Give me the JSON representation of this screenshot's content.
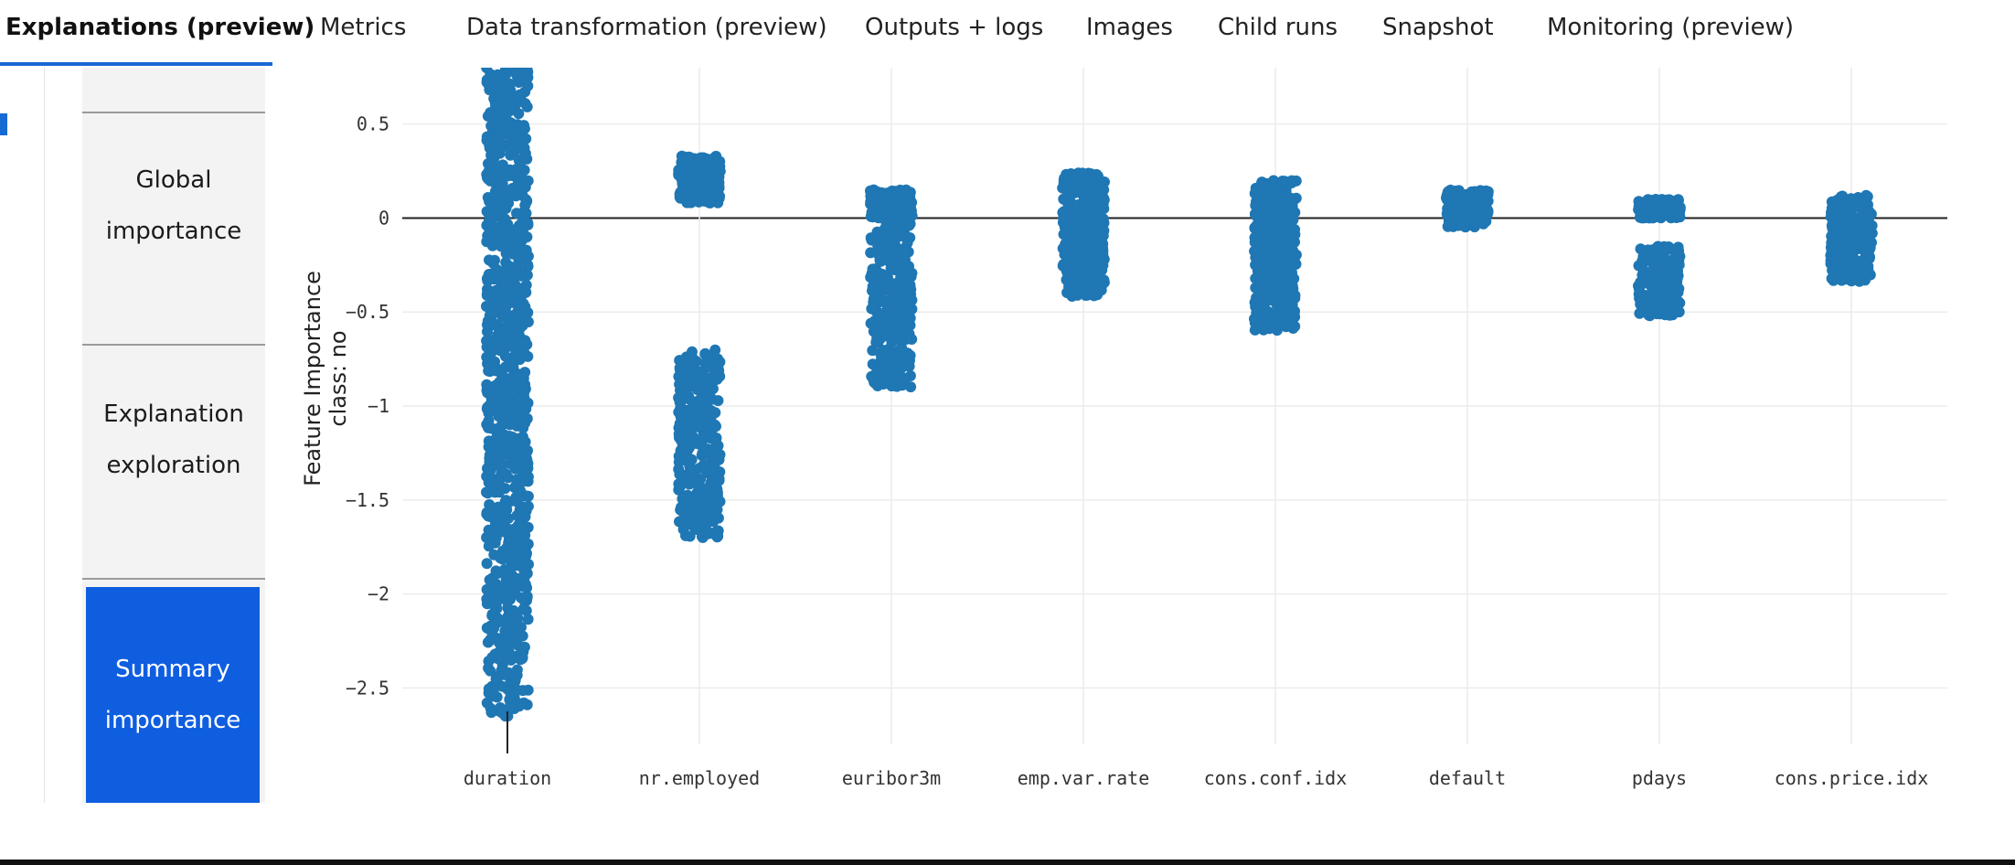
{
  "tabs": [
    {
      "label": "Explanations (preview)",
      "active": true
    },
    {
      "label": "Metrics"
    },
    {
      "label": "Data transformation (preview)"
    },
    {
      "label": "Outputs + logs"
    },
    {
      "label": "Images"
    },
    {
      "label": "Child runs"
    },
    {
      "label": "Snapshot"
    },
    {
      "label": "Monitoring (preview)"
    }
  ],
  "side_nav": {
    "items": [
      {
        "label": "Global importance"
      },
      {
        "label": "Explanation exploration"
      },
      {
        "label": "Summary importance",
        "selected": true
      }
    ]
  },
  "colors": {
    "accent": "#1769d4",
    "selected_bg": "#0f5ee0",
    "points": "#1f77b4"
  },
  "chart_data": {
    "type": "scatter",
    "ylabel_line1": "Feature Importance",
    "ylabel_line2": "class:  no",
    "ylim": [
      -2.8,
      0.8
    ],
    "yticks": [
      {
        "value": 0.5,
        "label": "0.5"
      },
      {
        "value": 0,
        "label": "0"
      },
      {
        "value": -0.5,
        "label": "−0.5"
      },
      {
        "value": -1,
        "label": "−1"
      },
      {
        "value": -1.5,
        "label": "−1.5"
      },
      {
        "value": -2,
        "label": "−2"
      },
      {
        "value": -2.5,
        "label": "−2.5"
      }
    ],
    "grid": true,
    "categories": [
      "duration",
      "nr.employed",
      "euribor3m",
      "emp.var.rate",
      "cons.conf.idx",
      "default",
      "pdays",
      "cons.price.idx"
    ],
    "series": [
      {
        "category": "duration",
        "clusters": [
          {
            "min": -2.65,
            "max": 0.8,
            "count": 900
          }
        ]
      },
      {
        "category": "nr.employed",
        "clusters": [
          {
            "min": 0.08,
            "max": 0.33,
            "count": 260
          },
          {
            "min": -1.7,
            "max": -0.7,
            "count": 320
          }
        ]
      },
      {
        "category": "euribor3m",
        "clusters": [
          {
            "min": 0.0,
            "max": 0.15,
            "count": 180
          },
          {
            "min": -0.9,
            "max": -0.02,
            "count": 300
          }
        ]
      },
      {
        "category": "emp.var.rate",
        "clusters": [
          {
            "min": -0.42,
            "max": 0.24,
            "count": 420
          }
        ]
      },
      {
        "category": "cons.conf.idx",
        "clusters": [
          {
            "min": -0.6,
            "max": 0.2,
            "count": 420
          }
        ]
      },
      {
        "category": "default",
        "clusters": [
          {
            "min": -0.05,
            "max": 0.15,
            "count": 200
          }
        ]
      },
      {
        "category": "pdays",
        "clusters": [
          {
            "min": 0.0,
            "max": 0.1,
            "count": 150
          },
          {
            "min": -0.52,
            "max": -0.15,
            "count": 160
          }
        ]
      },
      {
        "category": "cons.price.idx",
        "clusters": [
          {
            "min": -0.34,
            "max": 0.12,
            "count": 260
          }
        ]
      }
    ]
  }
}
